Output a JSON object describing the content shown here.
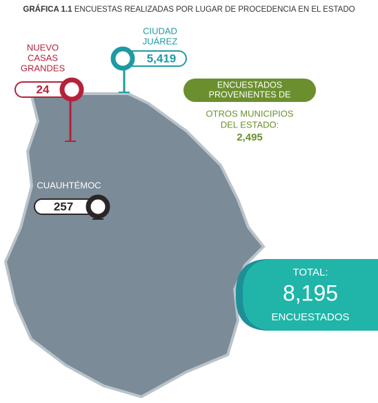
{
  "title": {
    "prefix": "GRÁFICA 1.1",
    "text": "ENCUESTAS REALIZADAS POR LUGAR DE PROCEDENCIA EN EL ESTADO"
  },
  "locations": [
    {
      "name_lines": [
        "NUEVO",
        "CASAS",
        "GRANDES"
      ],
      "value": "24"
    },
    {
      "name_lines": [
        "CIUDAD",
        "JUÁREZ"
      ],
      "value": "5,419"
    },
    {
      "name_lines": [
        "CUAUHTÉMOC"
      ],
      "value": "257"
    }
  ],
  "other": {
    "banner_lines": [
      "ENCUESTADOS",
      "PROVENIENTES DE"
    ],
    "text_lines": [
      "OTROS MUNICIPIOS",
      "DEL ESTADO:"
    ],
    "value": "2,495"
  },
  "total": {
    "label": "TOTAL:",
    "value": "8,195",
    "unit": "ENCUESTADOS"
  }
}
